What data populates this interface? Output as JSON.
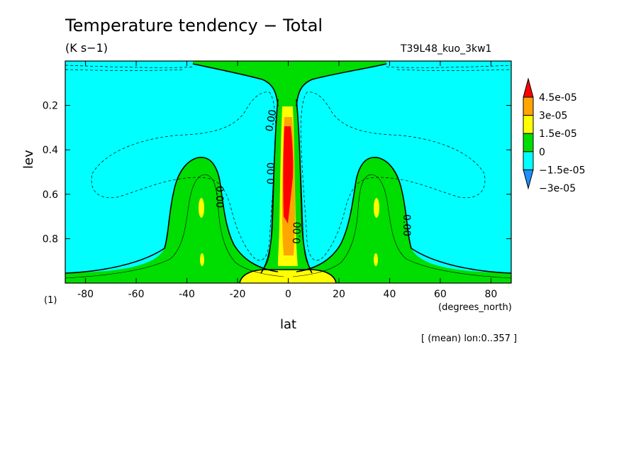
{
  "chart_data": {
    "type": "contour",
    "title": "Temperature tendency − Total",
    "units": "(K s−1)",
    "run_label": "T39L48_kuo_3kw1",
    "xlabel": "lat",
    "x_unit_label": "(degrees_north)",
    "ylabel": "lev",
    "y_unit_label": "(1)",
    "note": "[ (mean) lon:0..357 ]",
    "xlim": [
      -88,
      88
    ],
    "ylim": [
      1.0,
      0.0
    ],
    "xticks": [
      "-80",
      "-60",
      "-40",
      "-20",
      "0",
      "20",
      "40",
      "60",
      "80"
    ],
    "xtick_values": [
      -80,
      -60,
      -40,
      -20,
      0,
      20,
      40,
      60,
      80
    ],
    "yticks": [
      "0.2",
      "0.4",
      "0.6",
      "0.8"
    ],
    "ytick_values": [
      0.2,
      0.4,
      0.6,
      0.8
    ],
    "contour_labels": [
      "0.00",
      "0.00",
      "0.00",
      "0.00",
      "0.00"
    ],
    "colorbar": {
      "labels": [
        "4.5e-05",
        "3e-05",
        "1.5e-05",
        "0",
        "−1.5e-05",
        "−3e-05"
      ],
      "colors": [
        "#ff0000",
        "#ffa500",
        "#ffff00",
        "#00dd00",
        "#00ffff",
        "#1e90ff"
      ]
    },
    "colors": {
      "neg1": "#00ffff",
      "pos0": "#00dd00",
      "pos1": "#ffff00",
      "pos2": "#ffa500",
      "pos3": "#ff0000"
    }
  }
}
